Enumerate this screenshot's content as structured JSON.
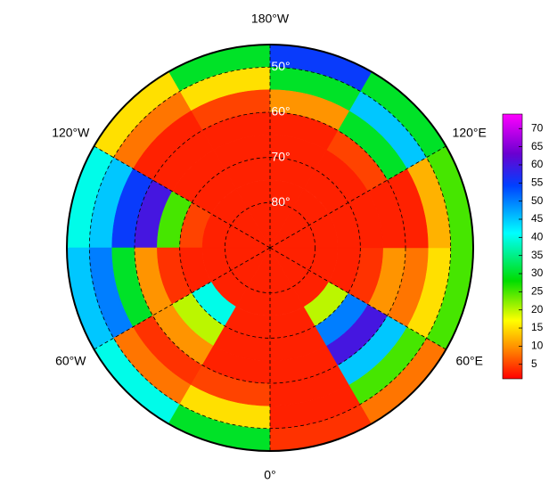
{
  "map": {
    "type": "polar-heatmap",
    "lat_edges": [
      45,
      50,
      55,
      60,
      65,
      70,
      75,
      90
    ],
    "lon_edges": [
      -180,
      -150,
      -120,
      -90,
      -60,
      -30,
      0,
      30,
      60,
      90,
      120,
      150,
      180
    ],
    "values": [
      [
        30,
        15,
        40,
        45,
        40,
        30,
        4,
        8,
        25,
        25,
        30,
        55
      ],
      [
        15,
        8,
        45,
        50,
        8,
        15,
        3,
        25,
        15,
        12,
        45,
        30
      ],
      [
        5,
        3,
        55,
        30,
        4,
        5,
        3,
        45,
        8,
        3,
        30,
        10
      ],
      [
        3,
        3,
        60,
        10,
        10,
        3,
        3,
        60,
        10,
        3,
        5,
        3
      ],
      [
        3,
        3,
        25,
        4,
        20,
        3,
        3,
        50,
        4,
        3,
        3,
        3
      ],
      [
        3,
        3,
        5,
        3,
        40,
        3,
        3,
        20,
        3,
        3,
        3,
        3
      ],
      [
        3,
        3,
        3,
        3,
        3,
        3,
        3,
        3,
        3,
        3,
        3,
        3
      ]
    ],
    "lon_labels": [
      {
        "value": -180,
        "label": "180°W"
      },
      {
        "value": -120,
        "label": "120°W"
      },
      {
        "value": 120,
        "label": "120°E"
      },
      {
        "value": -60,
        "label": "60°W"
      },
      {
        "value": 60,
        "label": "60°E"
      },
      {
        "value": 0,
        "label": "0°"
      }
    ],
    "lat_labels": [
      {
        "value": 50,
        "label": "50°"
      },
      {
        "value": 60,
        "label": "60°"
      },
      {
        "value": 70,
        "label": "70°"
      },
      {
        "value": 80,
        "label": "80°"
      }
    ],
    "clim": [
      1,
      74
    ],
    "cticks": [
      5,
      10,
      15,
      20,
      25,
      30,
      35,
      40,
      45,
      50,
      55,
      60,
      65,
      70
    ]
  }
}
